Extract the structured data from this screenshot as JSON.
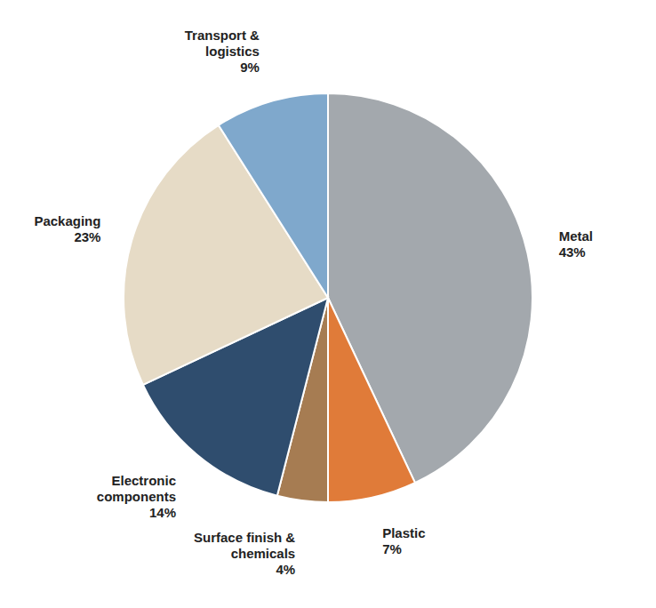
{
  "chart_data": {
    "type": "pie",
    "categories": [
      "Metal",
      "Plastic",
      "Surface finish & chemicals",
      "Electronic components",
      "Packaging",
      "Transport & logistics"
    ],
    "values": [
      43,
      7,
      4,
      14,
      23,
      9
    ],
    "value_labels": [
      "43%",
      "7%",
      "4%",
      "14%",
      "23%",
      "9%"
    ],
    "colors": [
      "#a3a8ad",
      "#e07b39",
      "#a67c52",
      "#2f4d6e",
      "#e6dbc6",
      "#7fa8cc"
    ],
    "data_labels": true
  }
}
